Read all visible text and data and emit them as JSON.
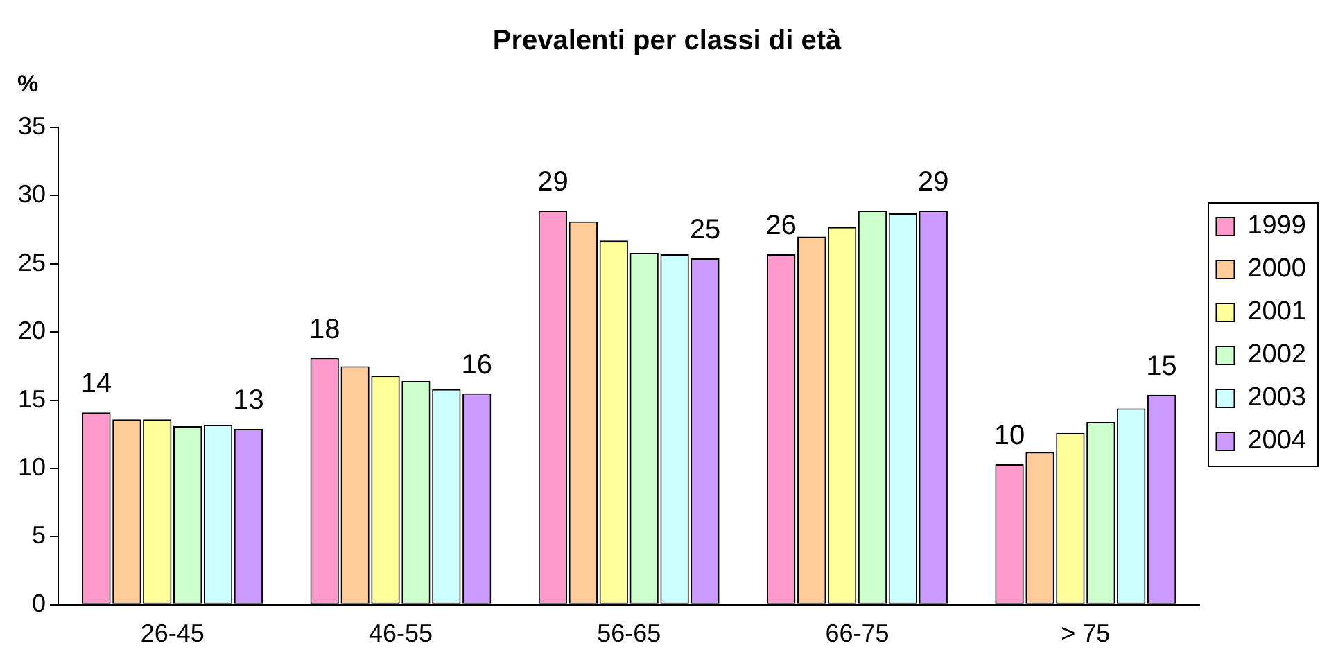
{
  "chart_data": {
    "type": "bar",
    "title": "Prevalenti per classi di età",
    "ylabel": "%",
    "categories": [
      "26-45",
      "46-55",
      "56-65",
      "66-75",
      "> 75"
    ],
    "ylim": [
      0,
      35
    ],
    "yticks": [
      0,
      5,
      10,
      15,
      20,
      25,
      30,
      35
    ],
    "grid": false,
    "legend": "right",
    "series": [
      {
        "name": "1999",
        "color": "#ff99cc",
        "values": [
          14.1,
          18.1,
          28.9,
          25.7,
          10.3
        ],
        "value_labels": [
          "14",
          "18",
          "29",
          "26",
          "10"
        ]
      },
      {
        "name": "2000",
        "color": "#ffcc99",
        "values": [
          13.6,
          17.5,
          28.1,
          27.0,
          11.2
        ]
      },
      {
        "name": "2001",
        "color": "#ffff99",
        "values": [
          13.6,
          16.8,
          26.7,
          27.7,
          12.6
        ]
      },
      {
        "name": "2002",
        "color": "#ccffcc",
        "values": [
          13.1,
          16.4,
          25.8,
          28.9,
          13.4
        ]
      },
      {
        "name": "2003",
        "color": "#ccffff",
        "values": [
          13.2,
          15.8,
          25.7,
          28.7,
          14.4
        ]
      },
      {
        "name": "2004",
        "color": "#cc99ff",
        "values": [
          12.9,
          15.5,
          25.4,
          28.9,
          15.4
        ],
        "value_labels": [
          "13",
          "16",
          "25",
          "29",
          "15"
        ]
      }
    ]
  }
}
